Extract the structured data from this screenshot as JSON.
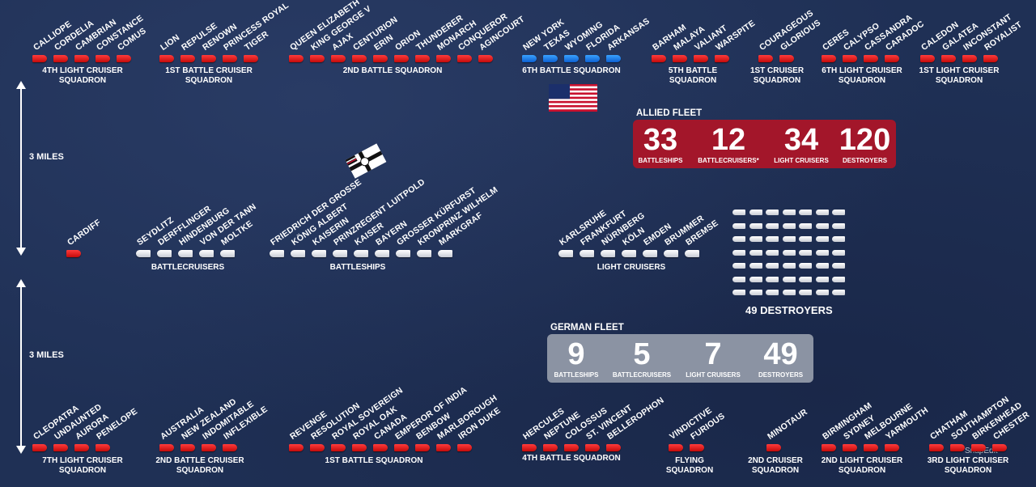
{
  "allied_top": [
    {
      "squadron": "4TH LIGHT CRUISER\nSQUADRON",
      "color": "red",
      "ships": [
        "CALLIOPE",
        "CORDELIA",
        "CAMBRIAN",
        "CONSTANCE",
        "COMUS"
      ]
    },
    {
      "squadron": "1ST BATTLE CRUISER\nSQUADRON",
      "color": "red",
      "ships": [
        "LION",
        "REPULSE",
        "RENOWN",
        "PRINCESS ROYAL",
        "TIGER"
      ]
    },
    {
      "squadron": "2ND BATTLE SQUADRON",
      "color": "red",
      "ships": [
        "QUEEN ELIZABETH",
        "KING GEORGE V",
        "AJAX",
        "CENTURION",
        "ERIN",
        "ORION",
        "THUNDERER",
        "MONARCH",
        "CONQUEROR",
        "AGINCOURT"
      ]
    },
    {
      "squadron": "6TH BATTLE SQUADRON",
      "color": "blue",
      "ships": [
        "NEW YORK",
        "TEXAS",
        "WYOMING",
        "FLORIDA",
        "ARKANSAS"
      ]
    },
    {
      "squadron": "5TH BATTLE\nSQUADRON",
      "color": "red",
      "ships": [
        "BARHAM",
        "MALAYA",
        "VALIANT",
        "WARSPITE"
      ]
    },
    {
      "squadron": "1ST CRUISER\nSQUADRON",
      "color": "red",
      "ships": [
        "COURAGEOUS",
        "GLORIOUS"
      ]
    },
    {
      "squadron": "6TH LIGHT CRUISER\nSQUADRON",
      "color": "red",
      "ships": [
        "CERES",
        "CALYPSO",
        "CASSANDRA",
        "CARADOC"
      ]
    },
    {
      "squadron": "1ST LIGHT CRUISER\nSQUADRON",
      "color": "red",
      "ships": [
        "CALEDON",
        "GALATEA",
        "INCONSTANT",
        "ROYALIST"
      ]
    }
  ],
  "german_middle": [
    {
      "squadron": "",
      "color": "red",
      "ships": [
        "CARDIFF"
      ]
    },
    {
      "squadron": "BATTLECRUISERS",
      "color": "white",
      "ships": [
        "SEYDLITZ",
        "DERFFLINGER",
        "HINDENBURG",
        "VON DER TANN",
        "MOLTKE"
      ]
    },
    {
      "squadron": "BATTLESHIPS",
      "color": "white",
      "ships": [
        "FRIEDRICH DER GROSSE",
        "KÖNIG ALBERT",
        "KAISERIN",
        "PRINZREGENT LUITPOLD",
        "KAISER",
        "BAYERN",
        "GROSSER KÜRFURST",
        "KRONPRINZ WILHELM",
        "MARKGRAF"
      ]
    },
    {
      "squadron": "LIGHT CRUISERS",
      "color": "white",
      "ships": [
        "KARLSRUHE",
        "FRANKFURT",
        "NÜRNBERG",
        "KÖLN",
        "EMDEN",
        "BRUMMER",
        "BREMSE"
      ]
    }
  ],
  "allied_bottom": [
    {
      "squadron": "7TH LIGHT CRUISER\nSQUADRON",
      "color": "red",
      "ships": [
        "CLEOPATRA",
        "UNDAUNTED",
        "AURORA",
        "PENELOPE"
      ]
    },
    {
      "squadron": "2ND BATTLE CRUISER\nSQUADRON",
      "color": "red",
      "ships": [
        "AUSTRALIA",
        "NEW ZEALAND",
        "INDOMITABLE",
        "INFLEXIBLE"
      ]
    },
    {
      "squadron": "1ST BATTLE SQUADRON",
      "color": "red",
      "ships": [
        "REVENGE",
        "RESOLUTION",
        "ROYAL SOVEREIGN",
        "ROYAL OAK",
        "CANADA",
        "EMPEROR OF INDIA",
        "BENBOW",
        "MARLBOROUGH",
        "IRON DUKE"
      ]
    },
    {
      "squadron": "4TH BATTLE SQUADRON",
      "color": "red",
      "ships": [
        "HERCULES",
        "NEPTUNE",
        "COLOSSUS",
        "ST. VINCENT",
        "BELLEROPHON"
      ]
    },
    {
      "squadron": "FLYING\nSQUADRON",
      "color": "red",
      "ships": [
        "VINDICTIVE",
        "FURIOUS"
      ]
    },
    {
      "squadron": "2ND CRUISER\nSQUADRON",
      "color": "red",
      "ships": [
        "MINOTAUR"
      ]
    },
    {
      "squadron": "2ND LIGHT CRUISER\nSQUADRON",
      "color": "red",
      "ships": [
        "BIRMINGHAM",
        "SYDNEY",
        "MELBOURNE",
        "YARMOUTH"
      ]
    },
    {
      "squadron": "3RD LIGHT CRUISER\nSQUADRON",
      "color": "red",
      "ships": [
        "CHATHAM",
        "SOUTHAMPTON",
        "BIRKENHEAD",
        "CHESTER"
      ]
    }
  ],
  "distances": [
    "3 MILES",
    "3 MILES"
  ],
  "allied_fleet": {
    "title": "ALLIED FLEET",
    "color": "#a3162a",
    "stats": [
      {
        "num": "33",
        "label": "BATTLESHIPS"
      },
      {
        "num": "12",
        "label": "BATTLECRUISERS*"
      },
      {
        "num": "34",
        "label": "LIGHT CRUISERS"
      },
      {
        "num": "120",
        "label": "DESTROYERS"
      }
    ]
  },
  "german_fleet": {
    "title": "GERMAN FLEET",
    "color": "#8b93a3",
    "stats": [
      {
        "num": "9",
        "label": "BATTLESHIPS"
      },
      {
        "num": "5",
        "label": "BATTLECRUISERS"
      },
      {
        "num": "7",
        "label": "LIGHT CRUISERS"
      },
      {
        "num": "49",
        "label": "DESTROYERS"
      }
    ]
  },
  "destroyers": {
    "count": 49,
    "label": "49 DESTROYERS"
  },
  "watermark": "SnapEdit",
  "icons": [
    "us-flag-icon",
    "german-imperial-ensign-icon"
  ]
}
